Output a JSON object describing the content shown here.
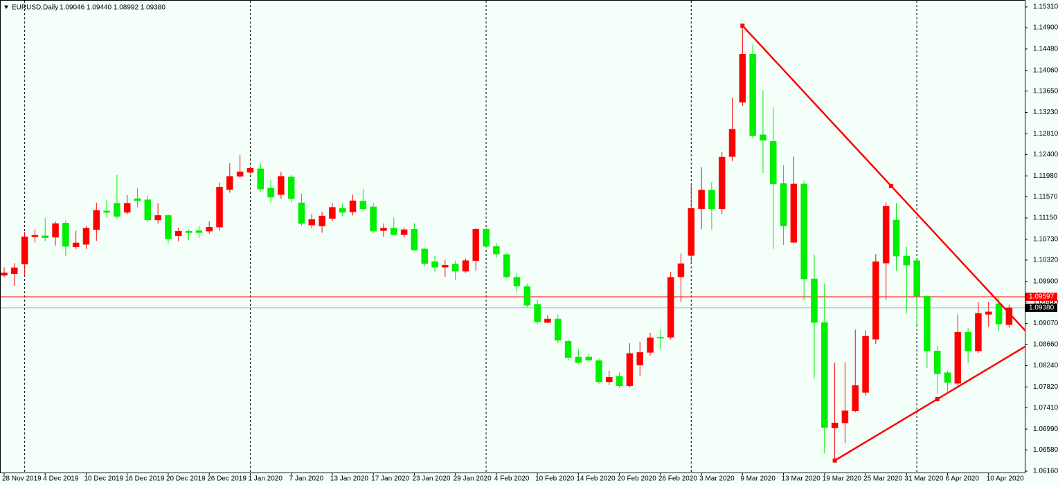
{
  "chart_data": {
    "type": "candlestick",
    "symbol": "EURUSD,Daily",
    "info": "1.09046 1.09440 1.08992 1.09380",
    "background": "#f4fff9",
    "up_color": "#ff0000",
    "down_color": "#00ee00",
    "categories": [
      "28 Nov 2019",
      null,
      null,
      null,
      "4 Dec 2019",
      null,
      null,
      null,
      "10 Dec 2019",
      null,
      null,
      null,
      "16 Dec 2019",
      null,
      null,
      null,
      "20 Dec 2019",
      null,
      null,
      null,
      "26 Dec 2019",
      null,
      null,
      null,
      "1 Jan 2020",
      null,
      null,
      null,
      "7 Jan 2020",
      null,
      null,
      null,
      "13 Jan 2020",
      null,
      null,
      null,
      "17 Jan 2020",
      null,
      null,
      null,
      "23 Jan 2020",
      null,
      null,
      null,
      "29 Jan 2020",
      null,
      null,
      null,
      "4 Feb 2020",
      null,
      null,
      null,
      "10 Feb 2020",
      null,
      null,
      null,
      "14 Feb 2020",
      null,
      null,
      null,
      "20 Feb 2020",
      null,
      null,
      null,
      "26 Feb 2020",
      null,
      null,
      null,
      "3 Mar 2020",
      null,
      null,
      null,
      "9 Mar 2020",
      null,
      null,
      null,
      "13 Mar 2020",
      null,
      null,
      null,
      "19 Mar 2020",
      null,
      null,
      null,
      "25 Mar 2020",
      null,
      null,
      null,
      "31 Mar 2020",
      null,
      null,
      null,
      "6 Apr 2020",
      null,
      null,
      null,
      "10 Apr 2020",
      null,
      null
    ],
    "open": [
      1.1002,
      1.1005,
      1.1024,
      1.1078,
      1.108,
      1.1077,
      1.1105,
      1.1058,
      1.1063,
      1.1092,
      1.1129,
      1.1144,
      1.1126,
      1.1153,
      1.1151,
      1.1111,
      1.112,
      1.108,
      1.1089,
      1.109,
      1.1089,
      1.1097,
      1.1171,
      1.1197,
      1.1205,
      1.1212,
      1.1174,
      1.1161,
      1.1196,
      1.1145,
      1.1101,
      1.1099,
      1.1114,
      1.1134,
      1.1127,
      1.1148,
      1.1137,
      1.109,
      1.1095,
      1.1082,
      1.1093,
      1.1054,
      1.1029,
      1.1018,
      1.1024,
      1.101,
      1.1031,
      1.1093,
      1.1059,
      1.1043,
      1.0998,
      1.098,
      1.0945,
      1.0909,
      1.0916,
      1.0872,
      1.0841,
      1.0841,
      1.0834,
      1.0792,
      1.0803,
      1.0784,
      1.0825,
      1.085,
      1.088,
      1.088,
      1.0999,
      1.1041,
      1.1133,
      1.117,
      1.1133,
      1.1236,
      1.1343,
      1.1438,
      1.1279,
      1.1266,
      1.1183,
      1.1067,
      1.1182,
      1.0995,
      1.0909,
      1.0701,
      1.0711,
      1.0735,
      1.0771,
      1.0876,
      1.1026,
      1.1111,
      1.104,
      1.1031,
      1.0961,
      1.0853,
      1.081,
      1.0789,
      1.089,
      1.0853,
      1.0925,
      1.0946,
      1.09046
    ],
    "high": [
      1.1018,
      1.1026,
      1.1088,
      1.1092,
      1.1115,
      1.1108,
      1.111,
      1.109,
      1.1099,
      1.1145,
      1.1151,
      1.12,
      1.116,
      1.1174,
      1.1159,
      1.1144,
      1.1123,
      1.1096,
      1.1093,
      1.1099,
      1.1108,
      1.1185,
      1.1223,
      1.1239,
      1.1217,
      1.1224,
      1.119,
      1.1206,
      1.12,
      1.1163,
      1.1123,
      1.1127,
      1.1145,
      1.1144,
      1.1161,
      1.1172,
      1.1145,
      1.1104,
      1.1116,
      1.1097,
      1.1105,
      1.1056,
      1.104,
      1.1033,
      1.1031,
      1.1035,
      1.1095,
      1.1095,
      1.1065,
      1.1045,
      1.1006,
      1.0986,
      1.0954,
      1.0923,
      1.0925,
      1.0875,
      1.0856,
      1.0848,
      1.0838,
      1.0814,
      1.0811,
      1.0868,
      1.0871,
      1.0889,
      1.0895,
      1.1009,
      1.1045,
      1.1182,
      1.1215,
      1.1186,
      1.1245,
      1.1352,
      1.1494,
      1.1457,
      1.1367,
      1.1333,
      1.1219,
      1.1236,
      1.1189,
      1.1043,
      1.0986,
      1.083,
      1.0831,
      1.0895,
      1.0894,
      1.1044,
      1.1146,
      1.1144,
      1.1058,
      1.1032,
      1.0962,
      1.0863,
      1.0814,
      1.0925,
      1.0898,
      1.0949,
      1.095,
      1.096,
      1.0944
    ],
    "low": [
      1.0998,
      1.0981,
      1.1002,
      1.1067,
      1.107,
      1.1061,
      1.104,
      1.1054,
      1.1054,
      1.107,
      1.1115,
      1.1114,
      1.1122,
      1.1136,
      1.1107,
      1.1104,
      1.1065,
      1.1069,
      1.1071,
      1.1076,
      1.1084,
      1.109,
      1.1165,
      1.1193,
      1.1201,
      1.1167,
      1.1144,
      1.1153,
      1.1146,
      1.11,
      1.1095,
      1.1086,
      1.1108,
      1.1119,
      1.112,
      1.1129,
      1.1085,
      1.1078,
      1.1081,
      1.1076,
      1.105,
      1.102,
      1.1009,
      1.0999,
      1.0992,
      1.1007,
      1.1011,
      1.1056,
      1.1037,
      1.0996,
      1.0969,
      1.0939,
      1.0906,
      1.0908,
      1.0868,
      1.0834,
      1.0827,
      1.0833,
      1.0788,
      1.0786,
      1.078,
      1.0781,
      1.0803,
      1.0844,
      1.0855,
      1.0876,
      1.0949,
      1.1026,
      1.1093,
      1.1092,
      1.1123,
      1.1227,
      1.1336,
      1.1272,
      1.1204,
      1.1054,
      1.1062,
      1.1065,
      1.0953,
      1.0799,
      1.0651,
      1.0636,
      1.0671,
      1.0732,
      1.0765,
      1.0867,
      1.0953,
      1.1011,
      1.0927,
      1.0905,
      1.0819,
      1.0769,
      1.0773,
      1.0781,
      1.0829,
      1.0849,
      1.09,
      1.0893,
      1.08992
    ],
    "close": [
      1.1007,
      1.1017,
      1.1078,
      1.1081,
      1.1076,
      1.1104,
      1.1059,
      1.1066,
      1.1095,
      1.113,
      1.1126,
      1.1118,
      1.1144,
      1.1149,
      1.1111,
      1.112,
      1.1074,
      1.1089,
      1.1086,
      1.1086,
      1.1097,
      1.1176,
      1.1197,
      1.1206,
      1.1213,
      1.1172,
      1.1156,
      1.1197,
      1.1153,
      1.1104,
      1.1112,
      1.1119,
      1.1136,
      1.1126,
      1.1149,
      1.1133,
      1.1089,
      1.1095,
      1.1082,
      1.1092,
      1.1052,
      1.1025,
      1.1018,
      1.1022,
      1.101,
      1.1031,
      1.1093,
      1.1059,
      1.1044,
      1.0999,
      1.0981,
      1.0943,
      1.091,
      1.0916,
      1.0874,
      1.084,
      1.083,
      1.0835,
      1.0792,
      1.0801,
      1.0784,
      1.0848,
      1.085,
      1.0879,
      1.0878,
      1.0998,
      1.1025,
      1.1134,
      1.117,
      1.1133,
      1.1235,
      1.129,
      1.1438,
      1.1277,
      1.1268,
      1.1182,
      1.1099,
      1.1182,
      1.0995,
      1.0909,
      1.0702,
      1.0711,
      1.0735,
      1.0785,
      1.0882,
      1.1029,
      1.1138,
      1.104,
      1.1022,
      1.0961,
      1.0853,
      1.0808,
      1.0791,
      1.089,
      1.0853,
      1.0927,
      1.093,
      1.0906,
      1.0938
    ],
    "ylim": [
      1.06133,
      1.15446
    ],
    "yticks": [
      {
        "value": 1.1531,
        "label": "1.15310"
      },
      {
        "value": 1.149,
        "label": "1.14900"
      },
      {
        "value": 1.1448,
        "label": "1.14480"
      },
      {
        "value": 1.1406,
        "label": "1.14060"
      },
      {
        "value": 1.1365,
        "label": "1.13650"
      },
      {
        "value": 1.1323,
        "label": "1.13230"
      },
      {
        "value": 1.1281,
        "label": "1.12810"
      },
      {
        "value": 1.124,
        "label": "1.12400"
      },
      {
        "value": 1.1198,
        "label": "1.11980"
      },
      {
        "value": 1.1157,
        "label": "1.11570"
      },
      {
        "value": 1.1115,
        "label": "1.11150"
      },
      {
        "value": 1.1073,
        "label": "1.10730"
      },
      {
        "value": 1.1032,
        "label": "1.10320"
      },
      {
        "value": 1.099,
        "label": "1.09900"
      },
      {
        "value": 1.0949,
        "label": "1.09490"
      },
      {
        "value": 1.0907,
        "label": "1.09070"
      },
      {
        "value": 1.0866,
        "label": "1.08660"
      },
      {
        "value": 1.0824,
        "label": "1.08240"
      },
      {
        "value": 1.0782,
        "label": "1.07820"
      },
      {
        "value": 1.0741,
        "label": "1.07410"
      },
      {
        "value": 1.0699,
        "label": "1.06990"
      },
      {
        "value": 1.0658,
        "label": "1.06580"
      },
      {
        "value": 1.0616,
        "label": "1.06160"
      }
    ],
    "price_lines": [
      {
        "value": 1.09597,
        "label": "1.09597",
        "color": "#ff0000",
        "label_background": "#ff0000"
      },
      {
        "value": 1.0938,
        "label": "1.09380",
        "color": "#a8b0c4",
        "label_background": "#000000"
      }
    ],
    "trendlines": [
      {
        "color": "#ff0000",
        "x": [
          72,
          86.5
        ],
        "y": [
          1.1494,
          1.1178
        ]
      },
      {
        "color": "#ff0000",
        "x": [
          81,
          91
        ],
        "y": [
          1.0637,
          1.0758
        ]
      }
    ],
    "period_separators": [
      2,
      24,
      47,
      67,
      89
    ]
  }
}
